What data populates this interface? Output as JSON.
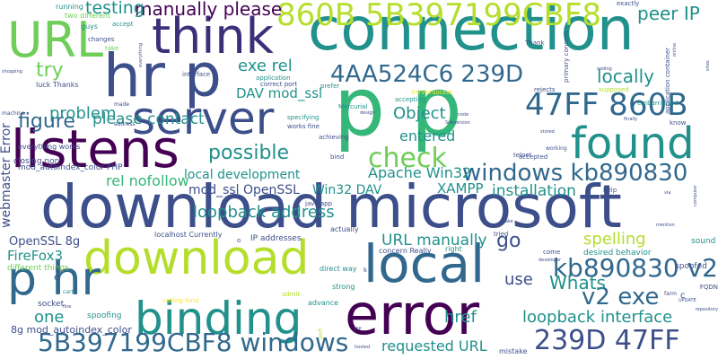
{
  "palette": {
    "dark_purple": "#440154",
    "indigo": "#3b2f7a",
    "blue": "#31688e",
    "steel": "#3d4f8a",
    "teal": "#21918c",
    "sea": "#26a784",
    "green": "#35b779",
    "lime": "#6ece58",
    "yellow_green": "#b5de2b",
    "yellow": "#fde725",
    "background": "#ffffff"
  },
  "words": {
    "connection": "connection",
    "download_microsoft": "download microsoft",
    "p_p": "p p",
    "hr_p": "hr p",
    "think": "think",
    "url": "URL",
    "listens": "listens",
    "server": "server",
    "local": "local",
    "download": "download",
    "error": "error",
    "binding": "binding",
    "p_hr": "p hr",
    "found": "found",
    "code_860b": "860B 5B397199CBF8",
    "code_4aa": "4AA524C6 239D",
    "code_47ff": "47FF 860B",
    "windows_kb": "windows kb890830",
    "kb_v2": "kb890830 v2",
    "v2_exe": "v2 exe",
    "code_239d": "239D 47FF",
    "code_5b3": "5B397199CBF8 windows",
    "manually_please": "manually please",
    "testing": "testing",
    "peer_ip": "peer IP",
    "try": "try",
    "exe_rel": "exe rel",
    "locally": "locally",
    "possible": "possible",
    "check": "check",
    "figure": "figure",
    "please_contact": "please contact",
    "dav_mod_ssl": "DAV mod_ssl",
    "object": "Object",
    "entered": "entered",
    "problem": "problem",
    "local_development": "local development",
    "apache_win32": "Apache Win32",
    "rel_nofollow": "rel nofollow",
    "mod_ssl_openssl": "mod_ssl OpenSSL",
    "win32_dav": "Win32 DAV",
    "xampp": "XAMPP",
    "installation": "installation",
    "loopback_address": "loopback address",
    "url_manually": "URL manually",
    "go": "go",
    "spelling": "spelling",
    "whats": "Whats",
    "use": "use",
    "loopback_interface": "loopback interface",
    "href": "href",
    "requested_url": "requested URL",
    "openssl_8g": "OpenSSL 8g",
    "firefox3": "FireFox3",
    "one": "one",
    "mod_autoindex": "8g mod_autoindex_color",
    "webmaster_error": "webmaster Error",
    "everything_works": "everything works",
    "closing_non": "closing non",
    "mod_autoindex_php": "mod_autoindex_color PHP",
    "different_things": "different things",
    "localhost_currently": "localhost Currently",
    "ip_addresses": "IP addresses",
    "actually": "actually",
    "concern_really": "concern Really",
    "desired_behavior": "desired behavior",
    "spoofed": "spoofed",
    "sound": "sound",
    "spoofing": "spoofing",
    "socket": "socket",
    "cart": "cart",
    "direct_way": "direct way",
    "strong": "strong",
    "advance": "advance",
    "admit": "admit",
    "calling_bind": "calling bind",
    "mistake": "mistake",
    "right": "right",
    "running": "running",
    "two_different": "two different",
    "guys": "guys",
    "changes": "changes",
    "luck_thanks": "luck Thanks",
    "interface": "interface",
    "application": "application",
    "mercurial": "Mercurial",
    "serversocket": "ServerSocket",
    "accepting": "accepting",
    "rejects": "rejects",
    "supposed": "supposed",
    "embarrassed": "embarrassed",
    "know": "know",
    "finally": "finally",
    "specifying": "specifying",
    "works_fine": "works fine",
    "achieving": "achieving",
    "telnet": "telnet",
    "accepted": "accepted",
    "working": "working",
    "help": "help",
    "bind": "bind",
    "java_app": "java app",
    "prefer": "prefer",
    "correct_port": "correct port",
    "exactly": "exactly",
    "thank": "Thank",
    "accept": "accept",
    "take": "take",
    "made": "made",
    "address": "address",
    "machine": "machine",
    "everything": "everything",
    "coding": "coding",
    "primary_concern": "primary concern",
    "application_container": "application container",
    "online": "online",
    "sites": "sites",
    "shopping": "shopping",
    "code": "code",
    "subversion": "Subversion",
    "design": "design",
    "stored": "stored",
    "tried": "tried",
    "make": "make",
    "come": "come",
    "fqdn": "FQDN",
    "update": "UPDATE",
    "repository": "repository",
    "mention": "mention",
    "developer": "developer",
    "via": "via",
    "port": "port",
    "hosted": "hosted",
    "computer": "computer",
    "farm": "farm",
    "isp": "ISP",
    "start": "start",
    "fine": "fine",
    "e": "e",
    "c": "c",
    "o": "o",
    "k": "k"
  }
}
